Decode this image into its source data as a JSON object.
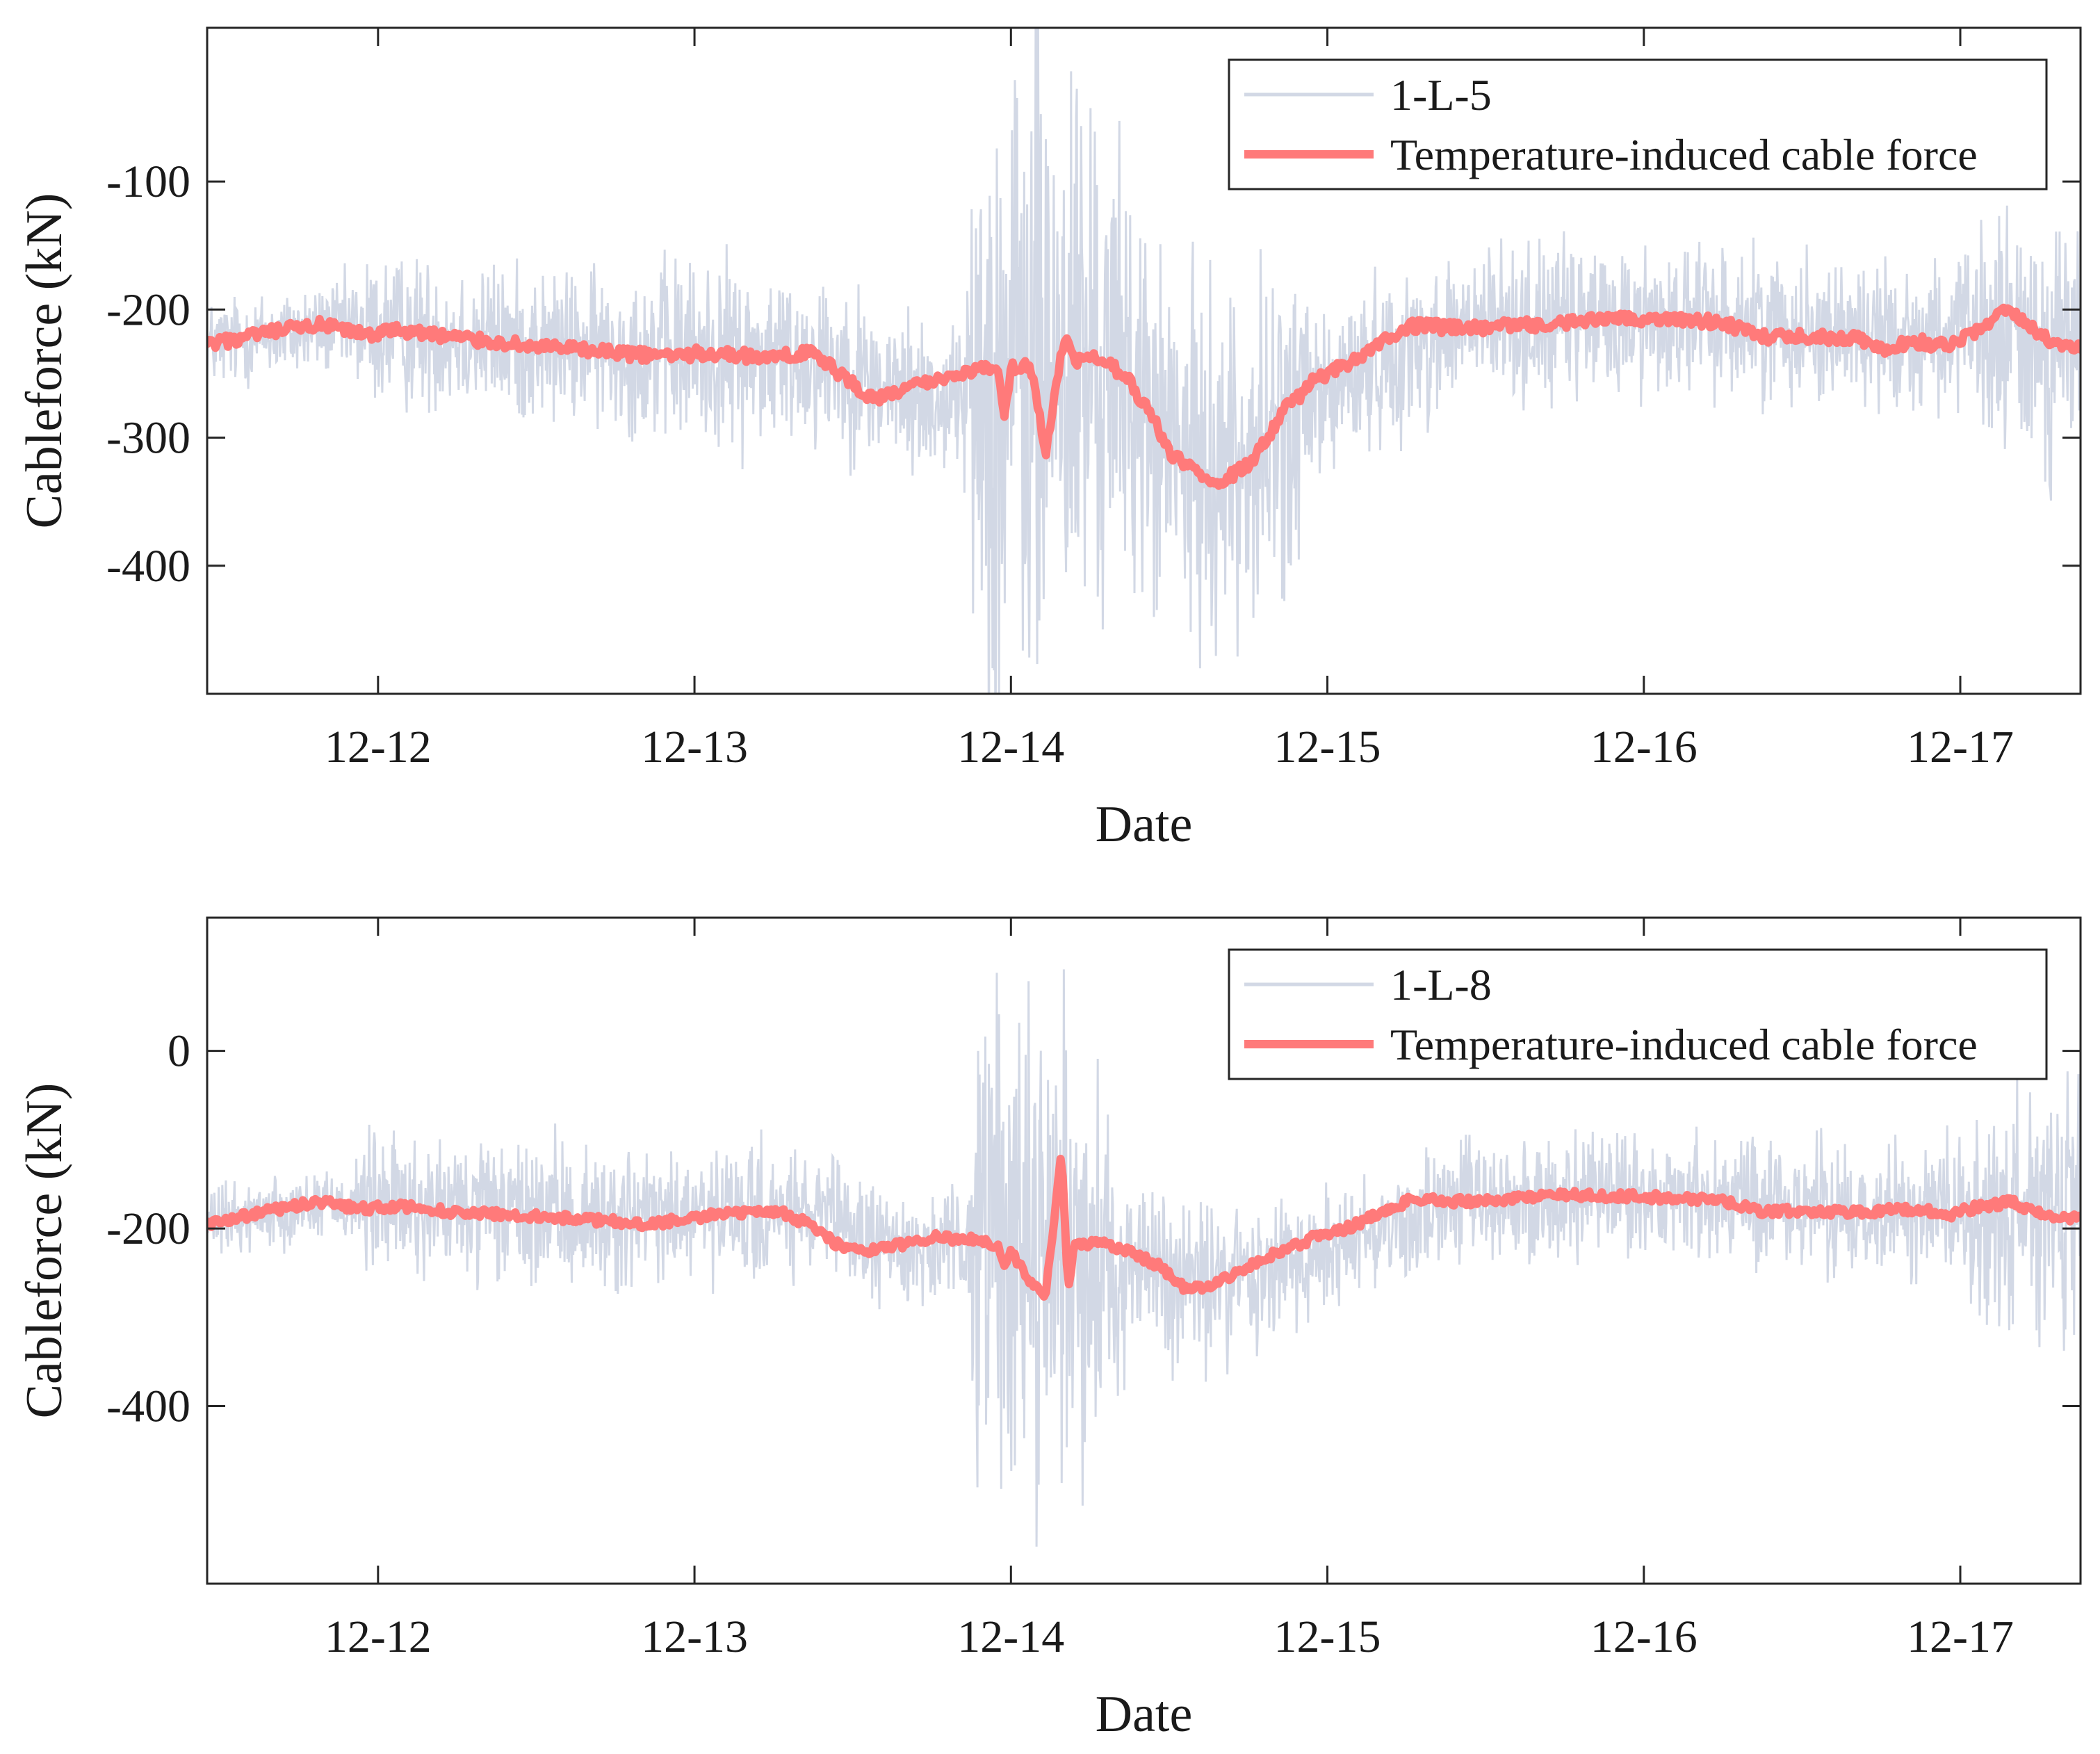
{
  "chart_data": [
    {
      "type": "line",
      "xlabel": "Date",
      "ylabel": "Cableforce (kN)",
      "xlim": [
        0,
        5.92
      ],
      "ylim": [
        -500,
        20
      ],
      "xtick_values": [
        0.54,
        1.54,
        2.54,
        3.54,
        4.54,
        5.54
      ],
      "xtick_labels": [
        "12-12",
        "12-13",
        "12-14",
        "12-15",
        "12-16",
        "12-17"
      ],
      "ytick_values": [
        -100,
        -200,
        -300,
        -400
      ],
      "ytick_labels": [
        "-100",
        "-200",
        "-300",
        "-400"
      ],
      "legend_position": "top-right",
      "series": [
        {
          "name": "1-L-5",
          "role": "raw",
          "color": "#d2d8e5",
          "baseline": {
            "x": [
              0,
              0.2,
              0.4,
              0.6,
              0.8,
              1.0,
              1.3,
              1.6,
              1.85,
              2.0,
              2.1,
              2.3,
              2.45,
              2.6,
              2.75,
              2.9,
              3.0,
              3.1,
              3.3,
              3.5,
              3.6,
              3.7,
              4.0,
              4.3,
              4.6,
              5.0,
              5.3,
              5.6,
              5.92
            ],
            "values": [
              -228,
              -220,
              -214,
              -218,
              -220,
              -228,
              -232,
              -235,
              -238,
              -240,
              -258,
              -272,
              -262,
              -246,
              -240,
              -250,
              -300,
              -320,
              -318,
              -275,
              -255,
              -240,
              -212,
              -210,
              -208,
              -212,
              -220,
              -222,
              -228
            ]
          },
          "noise_amplitude": {
            "x": [
              0,
              0.4,
              0.48,
              0.5,
              1.3,
              1.5,
              2.0,
              2.4,
              2.43,
              2.48,
              2.7,
              2.9,
              3.05,
              3.45,
              3.55,
              5.5,
              5.7,
              5.92
            ],
            "values": [
              45,
              45,
              60,
              75,
              75,
              95,
              85,
              75,
              300,
              360,
              340,
              200,
              180,
              160,
              80,
              70,
              130,
              130
            ]
          }
        },
        {
          "name": "Temperature-induced cable force",
          "role": "trend",
          "color": "#ff7a7a",
          "x": [
            0,
            0.2,
            0.35,
            0.5,
            0.6,
            0.8,
            1.0,
            1.2,
            1.4,
            1.6,
            1.8,
            1.9,
            2.0,
            2.1,
            2.3,
            2.4,
            2.5,
            2.52,
            2.54,
            2.6,
            2.65,
            2.7,
            2.72,
            2.74,
            2.8,
            2.9,
            3.0,
            3.05,
            3.1,
            3.2,
            3.3,
            3.4,
            3.5,
            3.6,
            3.8,
            4.0,
            4.3,
            4.6,
            4.8,
            4.9,
            5.0,
            5.2,
            5.3,
            5.4,
            5.5,
            5.6,
            5.7,
            5.8,
            5.92
          ],
          "values": [
            -228,
            -218,
            -212,
            -220,
            -216,
            -222,
            -228,
            -232,
            -236,
            -234,
            -238,
            -232,
            -250,
            -270,
            -255,
            -248,
            -245,
            -285,
            -245,
            -242,
            -312,
            -235,
            -220,
            -242,
            -238,
            -250,
            -290,
            -315,
            -322,
            -335,
            -320,
            -280,
            -255,
            -242,
            -212,
            -215,
            -210,
            -206,
            -210,
            -222,
            -220,
            -222,
            -230,
            -225,
            -228,
            -215,
            -200,
            -222,
            -230
          ]
        }
      ]
    },
    {
      "type": "line",
      "xlabel": "Date",
      "ylabel": "Cableforce (kN)",
      "xlim": [
        0,
        5.92
      ],
      "ylim": [
        -600,
        150
      ],
      "xtick_values": [
        0.54,
        1.54,
        2.54,
        3.54,
        4.54,
        5.54
      ],
      "xtick_labels": [
        "12-12",
        "12-13",
        "12-14",
        "12-15",
        "12-16",
        "12-17"
      ],
      "ytick_values": [
        0,
        -200,
        -400
      ],
      "ytick_labels": [
        "0",
        "-200",
        "-400"
      ],
      "legend_position": "top-right",
      "series": [
        {
          "name": "1-L-8",
          "role": "raw",
          "color": "#d2d8e5",
          "baseline": {
            "x": [
              0,
              0.2,
              0.4,
              0.6,
              0.8,
              1.0,
              1.3,
              1.6,
              1.85,
              2.0,
              2.1,
              2.3,
              2.45,
              2.6,
              2.75,
              2.9,
              3.0,
              3.1,
              3.3,
              3.5,
              3.6,
              3.7,
              4.0,
              4.3,
              4.6,
              5.0,
              5.3,
              5.6,
              5.92
            ],
            "values": [
              -195,
              -180,
              -170,
              -175,
              -180,
              -185,
              -190,
              -188,
              -185,
              -195,
              -215,
              -225,
              -210,
              -210,
              -225,
              -240,
              -250,
              -265,
              -255,
              -230,
              -210,
              -200,
              -168,
              -168,
              -165,
              -172,
              -180,
              -178,
              -190
            ]
          },
          "noise_amplitude": {
            "x": [
              0,
              0.4,
              0.48,
              0.5,
              1.3,
              1.5,
              2.0,
              2.4,
              2.43,
              2.48,
              2.7,
              2.9,
              3.05,
              3.45,
              3.55,
              5.5,
              5.7,
              5.92
            ],
            "values": [
              50,
              50,
              80,
              100,
              100,
              100,
              85,
              70,
              350,
              380,
              330,
              160,
              130,
              110,
              90,
              90,
              190,
              190
            ]
          }
        },
        {
          "name": "Temperature-induced cable force",
          "role": "trend",
          "color": "#ff7a7a",
          "x": [
            0,
            0.2,
            0.35,
            0.5,
            0.6,
            0.8,
            1.0,
            1.2,
            1.4,
            1.6,
            1.8,
            1.9,
            2.0,
            2.1,
            2.3,
            2.4,
            2.5,
            2.52,
            2.54,
            2.6,
            2.65,
            2.7,
            2.72,
            2.74,
            2.8,
            2.9,
            3.0,
            3.05,
            3.1,
            3.2,
            3.3,
            3.4,
            3.5,
            3.6,
            3.8,
            4.0,
            4.3,
            4.6,
            4.8,
            4.9,
            5.0,
            5.2,
            5.3,
            5.4,
            5.5,
            5.6,
            5.7,
            5.8,
            5.92
          ],
          "values": [
            -195,
            -180,
            -170,
            -178,
            -175,
            -182,
            -185,
            -190,
            -195,
            -185,
            -180,
            -195,
            -220,
            -225,
            -210,
            -212,
            -218,
            -245,
            -225,
            -260,
            -275,
            -110,
            -270,
            -220,
            -215,
            -225,
            -240,
            -255,
            -270,
            -260,
            -240,
            -225,
            -210,
            -200,
            -168,
            -170,
            -162,
            -165,
            -170,
            -180,
            -180,
            -182,
            -180,
            -178,
            -185,
            -175,
            -170,
            -185,
            -190
          ]
        }
      ]
    }
  ]
}
